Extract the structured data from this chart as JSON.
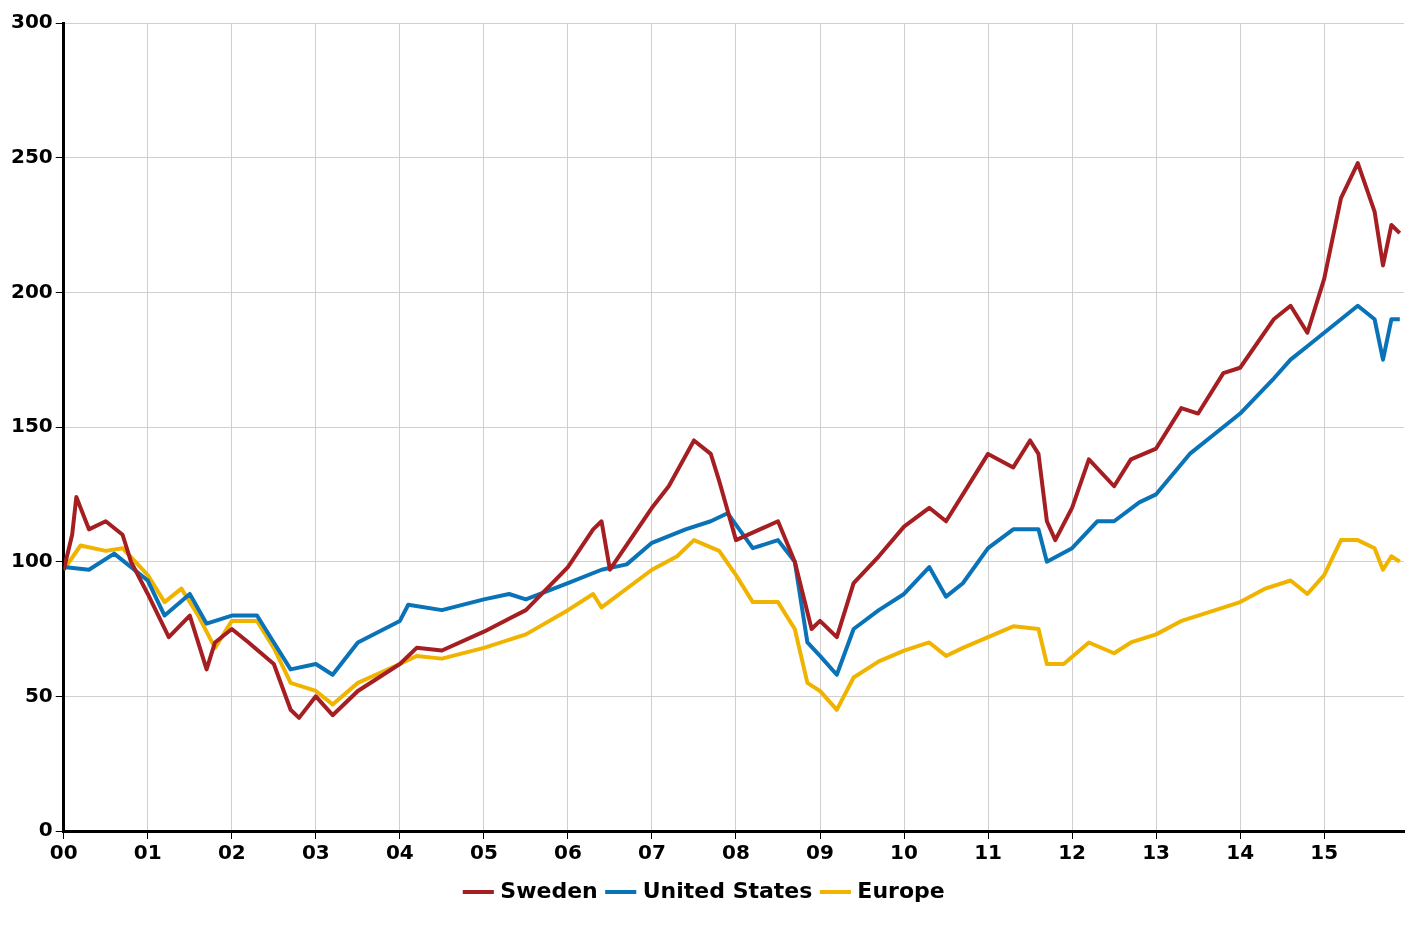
{
  "chart_data": {
    "type": "line",
    "xlim": [
      0,
      15.95
    ],
    "xticks": [
      {
        "value": 0,
        "label": "00"
      },
      {
        "value": 1,
        "label": "01"
      },
      {
        "value": 2,
        "label": "02"
      },
      {
        "value": 3,
        "label": "03"
      },
      {
        "value": 4,
        "label": "04"
      },
      {
        "value": 5,
        "label": "05"
      },
      {
        "value": 6,
        "label": "06"
      },
      {
        "value": 7,
        "label": "07"
      },
      {
        "value": 8,
        "label": "08"
      },
      {
        "value": 9,
        "label": "09"
      },
      {
        "value": 10,
        "label": "10"
      },
      {
        "value": 11,
        "label": "11"
      },
      {
        "value": 12,
        "label": "12"
      },
      {
        "value": 13,
        "label": "13"
      },
      {
        "value": 14,
        "label": "14"
      },
      {
        "value": 15,
        "label": "15"
      }
    ],
    "ylim": [
      0,
      300
    ],
    "yticks": [
      0,
      50,
      100,
      150,
      200,
      250,
      300
    ],
    "grid": true,
    "legend": "bottom",
    "marker": "none",
    "line_style": "solid",
    "series": [
      {
        "name": "Sweden",
        "color": "#a51e22",
        "x": [
          0,
          0.1,
          0.15,
          0.3,
          0.5,
          0.7,
          0.8,
          1,
          1.25,
          1.5,
          1.7,
          1.8,
          2,
          2.2,
          2.5,
          2.7,
          2.8,
          3,
          3.2,
          3.5,
          4,
          4.2,
          4.5,
          5,
          5.5,
          6,
          6.3,
          6.4,
          6.5,
          7,
          7.2,
          7.5,
          7.7,
          7.8,
          8,
          8.5,
          8.7,
          8.9,
          9,
          9.2,
          9.4,
          9.7,
          10,
          10.3,
          10.5,
          10.7,
          11,
          11.3,
          11.5,
          11.6,
          11.7,
          11.8,
          12,
          12.2,
          12.5,
          12.7,
          13,
          13.3,
          13.5,
          13.8,
          14,
          14.4,
          14.6,
          14.8,
          15,
          15.2,
          15.4,
          15.6,
          15.7,
          15.8,
          15.9
        ],
        "values": [
          97,
          110,
          124,
          112,
          115,
          110,
          100,
          88,
          72,
          80,
          60,
          70,
          75,
          70,
          62,
          45,
          42,
          50,
          43,
          52,
          62,
          68,
          67,
          74,
          82,
          98,
          112,
          115,
          97,
          120,
          128,
          145,
          140,
          130,
          108,
          115,
          100,
          75,
          78,
          72,
          92,
          102,
          113,
          120,
          115,
          125,
          140,
          135,
          145,
          140,
          115,
          108,
          120,
          138,
          128,
          138,
          142,
          157,
          155,
          170,
          172,
          190,
          195,
          185,
          205,
          235,
          248,
          230,
          210,
          225,
          222
        ]
      },
      {
        "name": "United States",
        "color": "#0a73b8",
        "x": [
          0,
          0.3,
          0.6,
          1,
          1.2,
          1.5,
          1.7,
          2,
          2.3,
          2.5,
          2.7,
          3,
          3.2,
          3.5,
          4,
          4.1,
          4.5,
          5,
          5.3,
          5.5,
          6,
          6.4,
          6.7,
          7,
          7.4,
          7.7,
          7.9,
          8.2,
          8.5,
          8.7,
          8.85,
          9,
          9.2,
          9.4,
          9.7,
          10,
          10.3,
          10.5,
          10.7,
          11,
          11.3,
          11.6,
          11.7,
          12,
          12.3,
          12.5,
          12.8,
          13,
          13.4,
          13.8,
          14,
          14.4,
          14.6,
          14.8,
          15,
          15.4,
          15.6,
          15.7,
          15.8,
          15.9
        ],
        "values": [
          98,
          97,
          103,
          93,
          80,
          88,
          77,
          80,
          80,
          70,
          60,
          62,
          58,
          70,
          78,
          84,
          82,
          86,
          88,
          86,
          92,
          97,
          99,
          107,
          112,
          115,
          118,
          105,
          108,
          100,
          70,
          65,
          58,
          75,
          82,
          88,
          98,
          87,
          92,
          105,
          112,
          112,
          100,
          105,
          115,
          115,
          122,
          125,
          140,
          150,
          155,
          168,
          175,
          180,
          185,
          195,
          190,
          175,
          190,
          190
        ]
      },
      {
        "name": "Europe",
        "color": "#f0b400",
        "x": [
          0,
          0.2,
          0.5,
          0.7,
          1,
          1.2,
          1.4,
          1.6,
          1.8,
          2,
          2.3,
          2.5,
          2.7,
          3,
          3.2,
          3.5,
          4,
          4.2,
          4.5,
          5,
          5.5,
          6,
          6.3,
          6.4,
          7,
          7.3,
          7.5,
          7.8,
          8,
          8.2,
          8.5,
          8.7,
          8.85,
          9,
          9.2,
          9.4,
          9.7,
          10,
          10.3,
          10.5,
          10.7,
          11,
          11.3,
          11.6,
          11.7,
          11.9,
          12.2,
          12.5,
          12.7,
          13,
          13.3,
          13.5,
          14,
          14.3,
          14.6,
          14.8,
          15,
          15.2,
          15.4,
          15.6,
          15.7,
          15.8,
          15.9
        ],
        "values": [
          97,
          106,
          104,
          105,
          95,
          85,
          90,
          80,
          68,
          78,
          78,
          68,
          55,
          52,
          47,
          55,
          62,
          65,
          64,
          68,
          73,
          82,
          88,
          83,
          97,
          102,
          108,
          104,
          95,
          85,
          85,
          75,
          55,
          52,
          45,
          57,
          63,
          67,
          70,
          65,
          68,
          72,
          76,
          75,
          62,
          62,
          70,
          66,
          70,
          73,
          78,
          80,
          85,
          90,
          93,
          88,
          95,
          108,
          108,
          105,
          97,
          102,
          100
        ]
      }
    ]
  }
}
